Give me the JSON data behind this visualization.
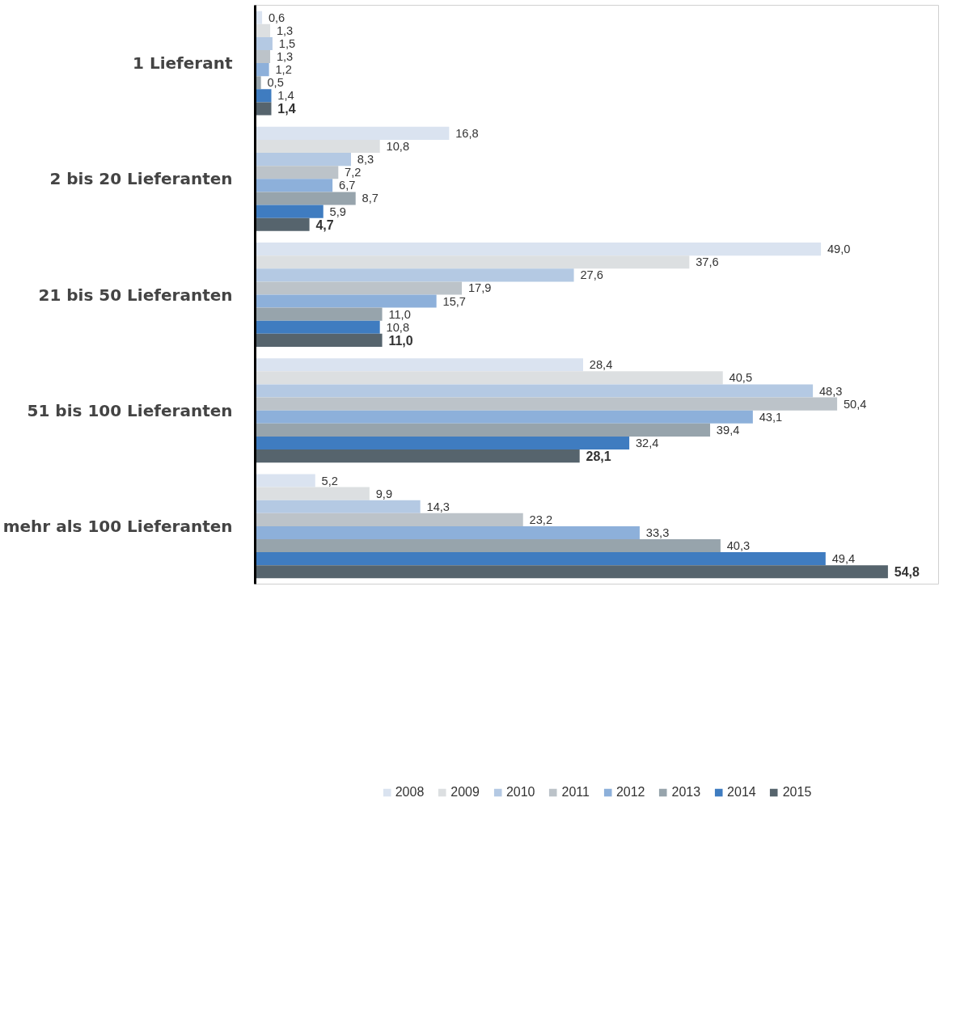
{
  "chart_data": {
    "type": "bar",
    "orientation": "horizontal",
    "categories": [
      "1 Lieferant",
      "2 bis 20 Lieferanten",
      "21 bis 50 Lieferanten",
      "51 bis 100 Lieferanten",
      "mehr als 100 Lieferanten"
    ],
    "series": [
      {
        "name": "2008",
        "color": "#dae3f0",
        "values": [
          0.6,
          16.8,
          49.0,
          28.4,
          5.2
        ],
        "value_labels": [
          "0,6",
          "16,8",
          "49,0",
          "28,4",
          "5,2"
        ]
      },
      {
        "name": "2009",
        "color": "#dcdfe1",
        "values": [
          1.3,
          10.8,
          37.6,
          40.5,
          9.9
        ],
        "value_labels": [
          "1,3",
          "10,8",
          "37,6",
          "40,5",
          "9,9"
        ]
      },
      {
        "name": "2010",
        "color": "#b4c9e3",
        "values": [
          1.5,
          8.3,
          27.6,
          48.3,
          14.3
        ],
        "value_labels": [
          "1,5",
          "8,3",
          "27,6",
          "48,3",
          "14,3"
        ]
      },
      {
        "name": "2011",
        "color": "#bcc3c9",
        "values": [
          1.3,
          7.2,
          17.9,
          50.4,
          23.2
        ],
        "value_labels": [
          "1,3",
          "7,2",
          "17,9",
          "50,4",
          "23,2"
        ]
      },
      {
        "name": "2012",
        "color": "#8db0da",
        "values": [
          1.2,
          6.7,
          15.7,
          43.1,
          33.3
        ],
        "value_labels": [
          "1,2",
          "6,7",
          "15,7",
          "43,1",
          "33,3"
        ]
      },
      {
        "name": "2013",
        "color": "#97a4ac",
        "values": [
          0.5,
          8.7,
          11.0,
          39.4,
          40.3
        ],
        "value_labels": [
          "0,5",
          "8,7",
          "11,0",
          "39,4",
          "40,3"
        ]
      },
      {
        "name": "2014",
        "color": "#3f7cc0",
        "values": [
          1.4,
          5.9,
          10.8,
          32.4,
          49.4
        ],
        "value_labels": [
          "1,4",
          "5,9",
          "10,8",
          "32,4",
          "49,4"
        ]
      },
      {
        "name": "2015",
        "color": "#56646d",
        "values": [
          1.4,
          4.7,
          11.0,
          28.1,
          54.8
        ],
        "value_labels": [
          "1,4",
          "4,7",
          "11,0",
          "28,1",
          "54,8"
        ]
      }
    ],
    "grid": false,
    "legend": "bottom"
  }
}
